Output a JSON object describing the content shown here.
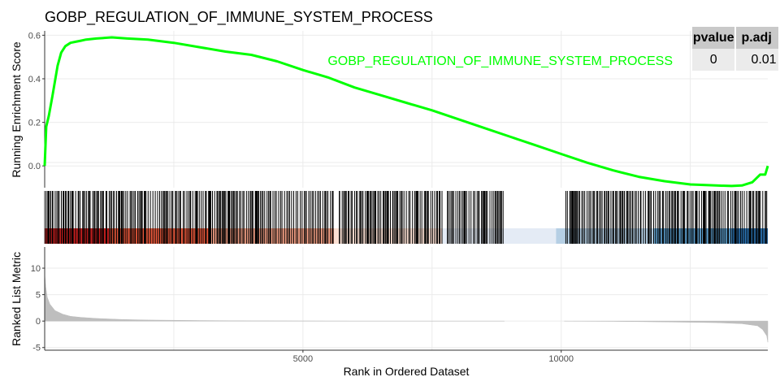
{
  "title": "GOBP_REGULATION_OF_IMMUNE_SYSTEM_PROCESS",
  "stats_table": {
    "headers": [
      "pvalue",
      "p.adj"
    ],
    "values": [
      "0",
      "0.01"
    ]
  },
  "colors": {
    "running_score_line": "#00ff00",
    "grid": "#ebebeb",
    "metric_fill": "#bebebe",
    "hits": "#000000",
    "heatbar": [
      "#c41e1e",
      "#e8583b",
      "#f3a085",
      "#fbe0d3",
      "#e4ebf5",
      "#b5cfe4",
      "#5b9bc8",
      "#2a71b0"
    ]
  },
  "chart_data": [
    {
      "type": "line",
      "panel": "running-enrichment-score",
      "title": "GOBP_REGULATION_OF_IMMUNE_SYSTEM_PROCESS",
      "series": [
        {
          "name": "GOBP_REGULATION_OF_IMMUNE_SYSTEM_PROCESS",
          "x": [
            0,
            30,
            80,
            150,
            250,
            320,
            400,
            500,
            600,
            700,
            800,
            1000,
            1300,
            1600,
            2000,
            2500,
            3000,
            3500,
            4000,
            4500,
            5000,
            5500,
            6000,
            6500,
            7000,
            7500,
            8000,
            8500,
            9000,
            9500,
            10000,
            10500,
            11000,
            11500,
            12000,
            12500,
            13000,
            13300,
            13500,
            13700,
            13850,
            13950,
            14000
          ],
          "y": [
            0.0,
            0.18,
            0.23,
            0.32,
            0.46,
            0.52,
            0.55,
            0.565,
            0.57,
            0.575,
            0.58,
            0.585,
            0.59,
            0.585,
            0.58,
            0.565,
            0.545,
            0.525,
            0.51,
            0.48,
            0.44,
            0.405,
            0.36,
            0.325,
            0.29,
            0.255,
            0.215,
            0.175,
            0.135,
            0.095,
            0.055,
            0.015,
            -0.02,
            -0.05,
            -0.07,
            -0.085,
            -0.09,
            -0.092,
            -0.09,
            -0.075,
            -0.04,
            -0.04,
            0.0
          ]
        }
      ],
      "ylabel": "Running Enrichment Score",
      "yticks": [
        0.0,
        0.2,
        0.4,
        0.6
      ],
      "ytick_labels": [
        "0.0",
        "0.2",
        "0.4",
        "0.6"
      ],
      "xlim": [
        0,
        14000
      ],
      "ylim": [
        -0.1,
        0.62
      ],
      "grid": true,
      "legend": "top-right inline label"
    },
    {
      "type": "barcode",
      "panel": "gene-hits-and-rank-heatbar",
      "gap_ranges": [
        [
          5600,
          5700
        ],
        [
          7700,
          7790
        ],
        [
          8900,
          10060
        ]
      ],
      "density_notes": "hits dense across full rank range",
      "heat_segments": [
        {
          "from": 0,
          "to": 1250,
          "color": "#c41e1e"
        },
        {
          "from": 1250,
          "to": 3200,
          "color": "#e8583b"
        },
        {
          "from": 3200,
          "to": 5600,
          "color": "#f3a085"
        },
        {
          "from": 5600,
          "to": 7700,
          "color": "#fbe0d3"
        },
        {
          "from": 7700,
          "to": 9900,
          "color": "#e4ebf5"
        },
        {
          "from": 9900,
          "to": 11800,
          "color": "#b5cfe4"
        },
        {
          "from": 11800,
          "to": 13300,
          "color": "#5b9bc8"
        },
        {
          "from": 13300,
          "to": 14000,
          "color": "#2a71b0"
        }
      ]
    },
    {
      "type": "area",
      "panel": "ranked-list-metric",
      "x": [
        0,
        20,
        50,
        100,
        200,
        350,
        500,
        700,
        1000,
        1500,
        2000,
        3000,
        4000,
        5000,
        6000,
        7000,
        8000,
        8900,
        10060,
        11000,
        12000,
        13000,
        13500,
        13800,
        13900,
        13980,
        14000
      ],
      "y": [
        9.0,
        6.5,
        4.5,
        3.2,
        2.0,
        1.3,
        0.9,
        0.7,
        0.5,
        0.3,
        0.2,
        0.1,
        0.05,
        0.02,
        0.0,
        0.0,
        0.0,
        0.0,
        0.0,
        -0.05,
        -0.15,
        -0.3,
        -0.5,
        -0.9,
        -1.6,
        -2.8,
        -4.0
      ],
      "gap_x": [
        8900,
        10060
      ],
      "xlabel": "Rank in Ordered Dataset",
      "ylabel": "Ranked List Metric",
      "xticks": [
        5000,
        10000
      ],
      "xtick_labels": [
        "5000",
        "10000"
      ],
      "yticks": [
        -5,
        0,
        5,
        10
      ],
      "ytick_labels": [
        "-5",
        "0",
        "5",
        "10"
      ],
      "xlim": [
        0,
        14000
      ],
      "ylim": [
        -5.5,
        14
      ],
      "grid": true
    }
  ]
}
